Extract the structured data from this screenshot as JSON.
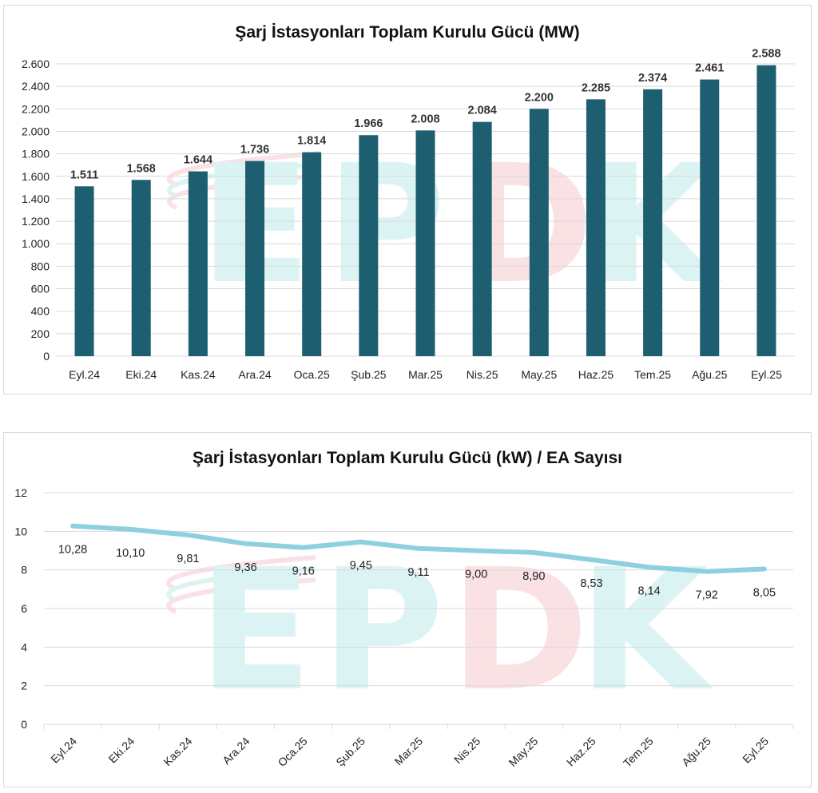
{
  "colors": {
    "bar": "#1d5e70",
    "line": "#8ecfe0",
    "grid": "#d9d9d9",
    "watermark_cyan": "#bfeceb",
    "watermark_red": "#f6c9cf"
  },
  "watermark": {
    "text": "EPDK",
    "icon": "epdk-logo-watermark"
  },
  "chart_data": [
    {
      "type": "bar",
      "title": "Şarj İstasyonları Toplam Kurulu Gücü (MW)",
      "categories": [
        "Eyl.24",
        "Eki.24",
        "Kas.24",
        "Ara.24",
        "Oca.25",
        "Şub.25",
        "Mar.25",
        "Nis.25",
        "May.25",
        "Haz.25",
        "Tem.25",
        "Ağu.25",
        "Eyl.25"
      ],
      "values": [
        1511,
        1568,
        1644,
        1736,
        1814,
        1966,
        2008,
        2084,
        2200,
        2285,
        2374,
        2461,
        2588
      ],
      "value_labels": [
        "1.511",
        "1.568",
        "1.644",
        "1.736",
        "1.814",
        "1.966",
        "2.008",
        "2.084",
        "2.200",
        "2.285",
        "2.374",
        "2.461",
        "2.588"
      ],
      "yticks": [
        0,
        200,
        400,
        600,
        800,
        1000,
        1200,
        1400,
        1600,
        1800,
        2000,
        2200,
        2400,
        2600
      ],
      "ytick_labels": [
        "0",
        "200",
        "400",
        "600",
        "800",
        "1.000",
        "1.200",
        "1.400",
        "1.600",
        "1.800",
        "2.000",
        "2.200",
        "2.400",
        "2.600"
      ],
      "ylim": [
        0,
        2600
      ],
      "grid": true,
      "legend": "none"
    },
    {
      "type": "line",
      "title": "Şarj İstasyonları Toplam Kurulu Gücü (kW) / EA Sayısı",
      "categories": [
        "Eyl.24",
        "Eki.24",
        "Kas.24",
        "Ara.24",
        "Oca.25",
        "Şub.25",
        "Mar.25",
        "Nis.25",
        "May.25",
        "Haz.25",
        "Tem.25",
        "Ağu.25",
        "Eyl.25"
      ],
      "values": [
        10.28,
        10.1,
        9.81,
        9.36,
        9.16,
        9.45,
        9.11,
        9.0,
        8.9,
        8.53,
        8.14,
        7.92,
        8.05
      ],
      "value_labels": [
        "10,28",
        "10,10",
        "9,81",
        "9,36",
        "9,16",
        "9,45",
        "9,11",
        "9,00",
        "8,90",
        "8,53",
        "8,14",
        "7,92",
        "8,05"
      ],
      "yticks": [
        0,
        2,
        4,
        6,
        8,
        10,
        12
      ],
      "ytick_labels": [
        "0",
        "2",
        "4",
        "6",
        "8",
        "10",
        "12"
      ],
      "ylim": [
        0,
        12
      ],
      "grid": true,
      "legend": "none"
    }
  ]
}
